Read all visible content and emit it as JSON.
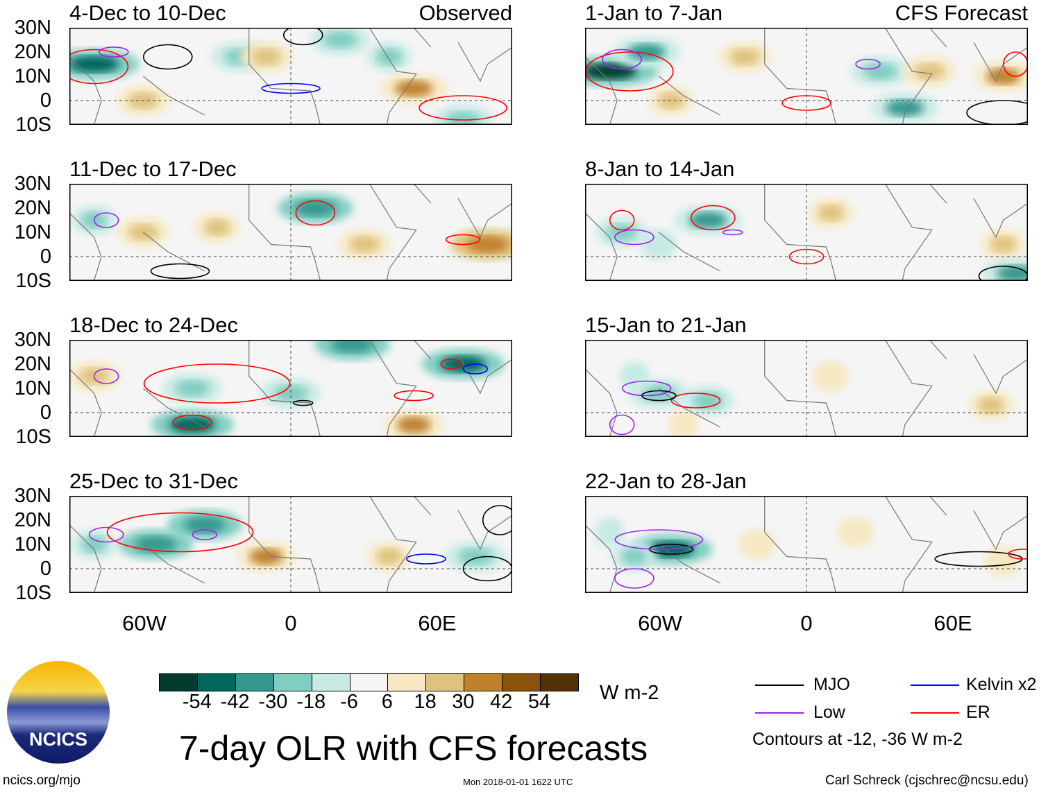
{
  "title": "7-day OLR with CFS forecasts",
  "column_headers": {
    "left": "Observed",
    "right": "CFS Forecast"
  },
  "lat_labels": [
    "30N",
    "20N",
    "10N",
    "0",
    "10S"
  ],
  "lon_labels": [
    "60W",
    "0",
    "60E"
  ],
  "colorbar": {
    "unit": "W m-2",
    "ticks": [
      "-54",
      "-42",
      "-30",
      "-18",
      "-6",
      "6",
      "18",
      "30",
      "42",
      "54"
    ],
    "colors": [
      "#003c30",
      "#01665e",
      "#35978f",
      "#80cdc1",
      "#c7eae5",
      "#f5f5f5",
      "#f6e8c3",
      "#dfc27d",
      "#bf812d",
      "#8c510a",
      "#543005"
    ]
  },
  "legend": {
    "items": [
      {
        "label": "MJO",
        "color": "#000000"
      },
      {
        "label": "Kelvin x2",
        "color": "#0000ff"
      },
      {
        "label": "Low",
        "color": "#a020f0"
      },
      {
        "label": "ER",
        "color": "#ff0000"
      }
    ],
    "note": "Contours at -12, -36 W m-2"
  },
  "footer": {
    "left": "ncics.org/mjo",
    "center": "Mon 2018-01-01 1622 UTC",
    "right": "Carl Schreck (cjschrec@ncsu.edu)"
  },
  "logo_text": "NCICS",
  "chart_data": {
    "type": "heatmap",
    "lon_range": [
      -90,
      90
    ],
    "lat_range": [
      -10,
      30
    ],
    "panels": [
      {
        "label": "4-Dec to 10-Dec",
        "blobs": [
          [
            -80,
            15,
            -50
          ],
          [
            -20,
            18,
            -30
          ],
          [
            20,
            25,
            -30
          ],
          [
            -10,
            18,
            25
          ],
          [
            50,
            5,
            35
          ],
          [
            -60,
            0,
            25
          ],
          [
            70,
            -8,
            -30
          ],
          [
            40,
            18,
            -20
          ]
        ],
        "contours": [
          [
            -80,
            14,
            14,
            7,
            "ER"
          ],
          [
            -50,
            18,
            10,
            5,
            "MJO"
          ],
          [
            0,
            5,
            12,
            2,
            "Kelvin"
          ],
          [
            70,
            -3,
            18,
            5,
            "ER"
          ],
          [
            -72,
            20,
            6,
            2,
            "Low"
          ],
          [
            5,
            27,
            8,
            4,
            "MJO"
          ]
        ]
      },
      {
        "label": "11-Dec to 17-Dec",
        "blobs": [
          [
            10,
            20,
            -40
          ],
          [
            -60,
            10,
            25
          ],
          [
            -30,
            12,
            20
          ],
          [
            80,
            5,
            40
          ],
          [
            30,
            5,
            25
          ],
          [
            -80,
            15,
            -20
          ]
        ],
        "contours": [
          [
            10,
            18,
            8,
            5,
            "ER"
          ],
          [
            -75,
            15,
            5,
            3,
            "Low"
          ],
          [
            70,
            7,
            7,
            2,
            "ER"
          ],
          [
            -45,
            -6,
            12,
            3,
            "MJO"
          ]
        ]
      },
      {
        "label": "18-Dec to 24-Dec",
        "blobs": [
          [
            -40,
            10,
            -30
          ],
          [
            0,
            8,
            -30
          ],
          [
            70,
            20,
            -45
          ],
          [
            -80,
            15,
            25
          ],
          [
            50,
            -5,
            30
          ],
          [
            -40,
            -5,
            -45
          ],
          [
            25,
            28,
            -40
          ]
        ],
        "contours": [
          [
            -30,
            12,
            30,
            8,
            "ER"
          ],
          [
            -75,
            15,
            5,
            3,
            "Low"
          ],
          [
            65,
            20,
            4,
            2,
            "ER"
          ],
          [
            75,
            18,
            5,
            2,
            "Kelvin"
          ],
          [
            -40,
            -4,
            8,
            3,
            "ER"
          ],
          [
            50,
            7,
            8,
            2,
            "ER"
          ],
          [
            5,
            4,
            4,
            1,
            "MJO"
          ]
        ]
      },
      {
        "label": "25-Dec to 31-Dec",
        "blobs": [
          [
            -55,
            10,
            -40
          ],
          [
            -35,
            18,
            -40
          ],
          [
            -80,
            10,
            -20
          ],
          [
            -10,
            5,
            30
          ],
          [
            40,
            5,
            20
          ],
          [
            75,
            5,
            -30
          ]
        ],
        "contours": [
          [
            -45,
            15,
            30,
            8,
            "ER"
          ],
          [
            -75,
            14,
            7,
            3,
            "Low"
          ],
          [
            55,
            4,
            8,
            2,
            "Kelvin"
          ],
          [
            80,
            0,
            10,
            5,
            "MJO"
          ],
          [
            -35,
            14,
            5,
            2,
            "Low"
          ],
          [
            85,
            20,
            7,
            6,
            "MJO"
          ]
        ]
      },
      {
        "label": "1-Jan to 7-Jan",
        "blobs": [
          [
            -80,
            12,
            -55
          ],
          [
            -65,
            20,
            -35
          ],
          [
            -25,
            18,
            25
          ],
          [
            30,
            12,
            -30
          ],
          [
            50,
            12,
            25
          ],
          [
            80,
            10,
            30
          ],
          [
            -55,
            0,
            20
          ],
          [
            40,
            -3,
            -35
          ]
        ],
        "contours": [
          [
            -72,
            12,
            18,
            8,
            "ER"
          ],
          [
            -75,
            17,
            8,
            4,
            "Low"
          ],
          [
            0,
            -1,
            10,
            3,
            "ER"
          ],
          [
            80,
            -5,
            15,
            5,
            "MJO"
          ],
          [
            25,
            15,
            5,
            2,
            "Low"
          ],
          [
            85,
            15,
            5,
            5,
            "ER"
          ]
        ]
      },
      {
        "label": "8-Jan to 14-Jan",
        "blobs": [
          [
            -40,
            15,
            -35
          ],
          [
            -75,
            10,
            -25
          ],
          [
            10,
            18,
            20
          ],
          [
            80,
            5,
            20
          ],
          [
            -60,
            5,
            -15
          ],
          [
            85,
            -7,
            -35
          ]
        ],
        "contours": [
          [
            -38,
            16,
            9,
            5,
            "ER"
          ],
          [
            -70,
            8,
            8,
            3,
            "Low"
          ],
          [
            0,
            0,
            7,
            3,
            "ER"
          ],
          [
            -75,
            15,
            5,
            4,
            "ER"
          ],
          [
            80,
            -8,
            10,
            4,
            "MJO"
          ],
          [
            -30,
            10,
            4,
            1,
            "Low"
          ]
        ]
      },
      {
        "label": "15-Jan to 21-Jan",
        "blobs": [
          [
            -60,
            8,
            -30
          ],
          [
            -40,
            5,
            -25
          ],
          [
            -70,
            15,
            -10
          ],
          [
            10,
            15,
            15
          ],
          [
            75,
            3,
            20
          ],
          [
            -50,
            -5,
            10
          ]
        ],
        "contours": [
          [
            -45,
            5,
            10,
            3,
            "ER"
          ],
          [
            -65,
            10,
            10,
            3,
            "Low"
          ],
          [
            -60,
            7,
            7,
            2,
            "MJO"
          ],
          [
            -75,
            -5,
            5,
            4,
            "Low"
          ]
        ]
      },
      {
        "label": "22-Jan to 28-Jan",
        "blobs": [
          [
            -55,
            8,
            -45
          ],
          [
            -70,
            5,
            -20
          ],
          [
            -20,
            10,
            15
          ],
          [
            20,
            15,
            15
          ],
          [
            80,
            3,
            15
          ],
          [
            -80,
            15,
            -10
          ]
        ],
        "contours": [
          [
            -55,
            8,
            9,
            2,
            "MJO"
          ],
          [
            -60,
            12,
            18,
            4,
            "Low"
          ],
          [
            70,
            4,
            18,
            3,
            "MJO"
          ],
          [
            88,
            6,
            6,
            2,
            "ER"
          ],
          [
            -70,
            -4,
            8,
            4,
            "Low"
          ]
        ]
      }
    ]
  }
}
